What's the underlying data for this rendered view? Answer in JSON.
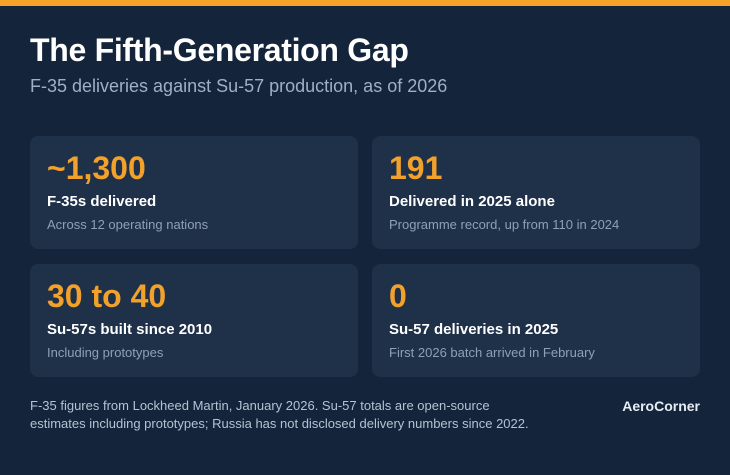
{
  "header": {
    "title": "The Fifth-Generation Gap",
    "subtitle": "F-35 deliveries against Su-57 production, as of 2026"
  },
  "cards": [
    {
      "stat": "~1,300",
      "label": "F-35s delivered",
      "note": "Across 12 operating nations"
    },
    {
      "stat": "191",
      "label": "Delivered in 2025 alone",
      "note": "Programme record, up from 110 in 2024"
    },
    {
      "stat": "30 to 40",
      "label": "Su-57s built since 2010",
      "note": "Including prototypes"
    },
    {
      "stat": "0",
      "label": "Su-57 deliveries in 2025",
      "note": "First 2026 batch arrived in February"
    }
  ],
  "footer": {
    "source_note": "F-35 figures from Lockheed Martin, January 2026. Su-57 totals are open-source estimates including prototypes; Russia has not disclosed delivery numbers since 2022.",
    "brand": "AeroCorner"
  },
  "colors": {
    "background": "#14243a",
    "card": "#1f3049",
    "accent": "#f2a12b",
    "muted_text": "#8ea0b7"
  }
}
